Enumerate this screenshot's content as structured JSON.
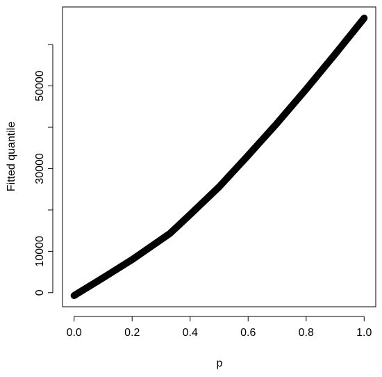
{
  "chart_data": {
    "type": "line",
    "x_label": "p",
    "y_label": "Fitted quantile",
    "x": [
      0,
      0.1,
      0.2,
      0.33,
      0.4,
      0.5,
      0.6,
      0.7,
      0.8,
      0.9,
      1.0
    ],
    "values": [
      -700,
      3600,
      8000,
      14300,
      18900,
      25600,
      33200,
      41000,
      49200,
      57700,
      66400
    ],
    "color": "#000000",
    "xlim": [
      -0.04,
      1.04
    ],
    "xticks": [
      {
        "value": 0,
        "label": "0.0"
      },
      0.2,
      0.4,
      0.6,
      0.8,
      {
        "value": 1,
        "label": "1.0"
      }
    ],
    "ylim": [
      -3400,
      69100
    ],
    "yticks": [
      0,
      10000,
      30000,
      50000
    ],
    "yticks_unlabeled": [
      20000,
      40000,
      60000
    ],
    "grid": false
  }
}
